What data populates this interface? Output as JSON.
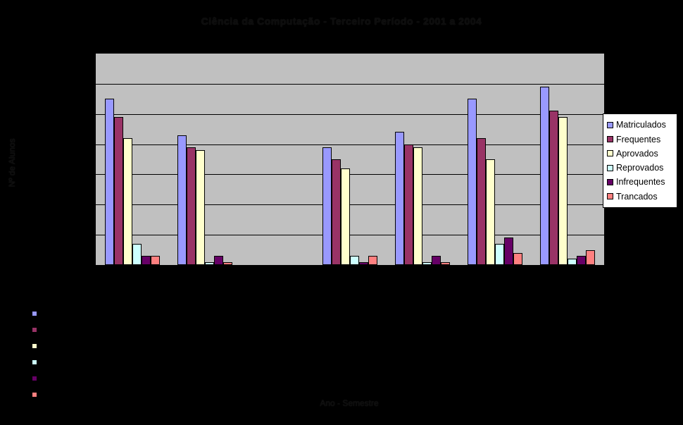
{
  "title": "Ciência da Computação - Terceiro Período - 2001 a 2004",
  "chart_data": {
    "type": "bar",
    "title": "Ciência da Computação - Terceiro Período - 2001 a 2004",
    "xlabel": "Ano - Semestre",
    "ylabel": "Nº de Alunos",
    "ylim": [
      0,
      70
    ],
    "gridline_step": 10,
    "grid": true,
    "legend_position": "right",
    "plot_bg_color": "#C0C0C0",
    "page_bg_color": "#000000",
    "categories": [
      "",
      "",
      "",
      "",
      "",
      "",
      ""
    ],
    "series": [
      {
        "name": "Matriculados",
        "color": "#9999FF",
        "values": [
          55,
          43,
          0,
          39,
          44,
          55,
          59
        ]
      },
      {
        "name": "Frequentes",
        "color": "#993366",
        "values": [
          49,
          39,
          0,
          35,
          40,
          42,
          51
        ]
      },
      {
        "name": "Aprovados",
        "color": "#FFFFCC",
        "values": [
          42,
          38,
          0,
          32,
          39,
          35,
          49
        ]
      },
      {
        "name": "Reprovados",
        "color": "#CCFFFF",
        "values": [
          7,
          1,
          0,
          3,
          1,
          7,
          2
        ]
      },
      {
        "name": "Infrequentes",
        "color": "#660066",
        "values": [
          3,
          3,
          0,
          1,
          3,
          9,
          3
        ]
      },
      {
        "name": "Trancados",
        "color": "#FF8080",
        "values": [
          3,
          1,
          0,
          3,
          1,
          4,
          5
        ]
      }
    ]
  }
}
